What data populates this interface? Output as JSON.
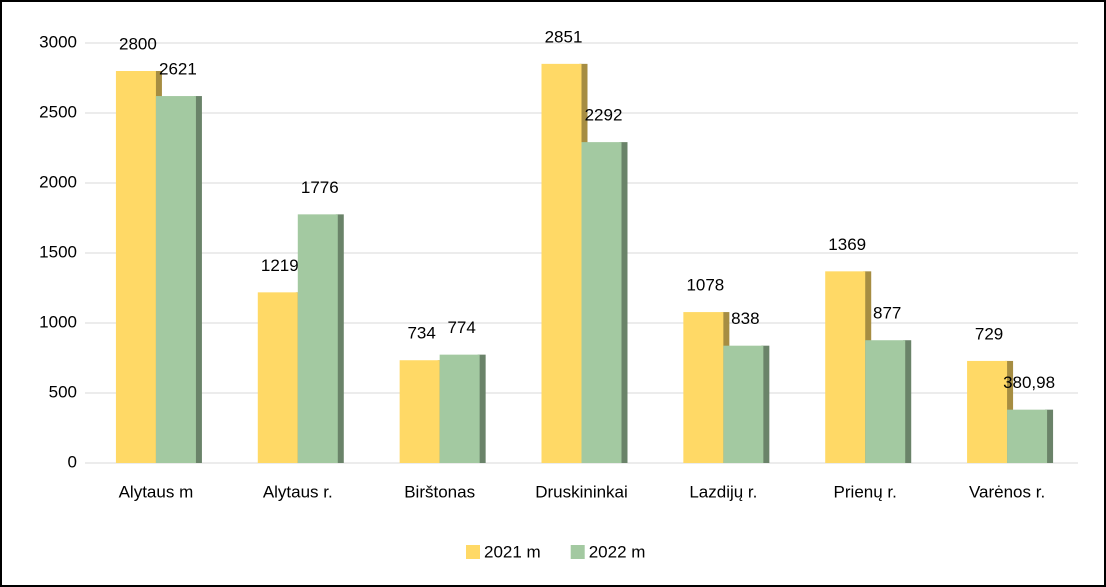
{
  "chart_data": {
    "type": "bar",
    "categories": [
      "Alytaus m",
      "Alytaus r.",
      "Birštonas",
      "Druskininkai",
      "Lazdijų r.",
      "Prienų r.",
      "Varėnos r."
    ],
    "series": [
      {
        "name": "2021 m",
        "color": "#FFD966",
        "values": [
          2800,
          1219,
          734,
          2851,
          1078,
          1369,
          729
        ]
      },
      {
        "name": "2022 m",
        "color": "#A3C9A1",
        "values": [
          2621,
          1776,
          774,
          2292,
          838,
          877,
          380.98
        ],
        "value_labels": [
          "2621",
          "1776",
          "774",
          "2292",
          "838",
          "877",
          "380,98"
        ]
      }
    ],
    "ylim": [
      0,
      3000
    ],
    "yticks": [
      0,
      500,
      1000,
      1500,
      2000,
      2500,
      3000
    ],
    "grid": true,
    "legend": "bottom"
  }
}
